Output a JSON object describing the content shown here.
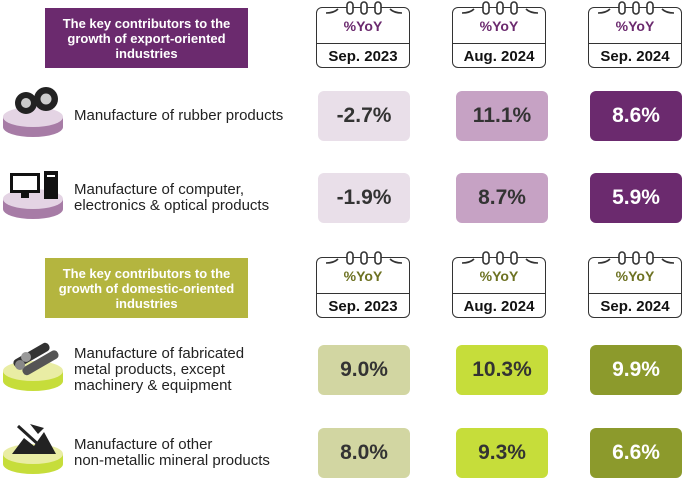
{
  "sections": [
    {
      "header": "The key contributors to the\ngrowth of export-oriented\nindustries",
      "columns": [
        {
          "unit": "%YoY",
          "period": "Sep. 2023"
        },
        {
          "unit": "%YoY",
          "period": "Aug. 2024"
        },
        {
          "unit": "%YoY",
          "period": "Sep. 2024"
        }
      ],
      "rows": [
        {
          "label": "Manufacture of rubber products",
          "values": [
            "-2.7%",
            "11.1%",
            "8.6%"
          ]
        },
        {
          "label": "Manufacture of computer,\nelectronics & optical products",
          "values": [
            "-1.9%",
            "8.7%",
            "5.9%"
          ]
        }
      ]
    },
    {
      "header": "The key contributors to the\ngrowth of domestic-oriented\nindustries",
      "columns": [
        {
          "unit": "%YoY",
          "period": "Sep. 2023"
        },
        {
          "unit": "%YoY",
          "period": "Aug. 2024"
        },
        {
          "unit": "%YoY",
          "period": "Sep. 2024"
        }
      ],
      "rows": [
        {
          "label": "Manufacture of fabricated\nmetal products, except\nmachinery & equipment",
          "values": [
            "9.0%",
            "10.3%",
            "9.9%"
          ]
        },
        {
          "label": "Manufacture of other\nnon-metallic mineral products",
          "values": [
            "8.0%",
            "9.3%",
            "6.6%"
          ]
        }
      ]
    }
  ]
}
